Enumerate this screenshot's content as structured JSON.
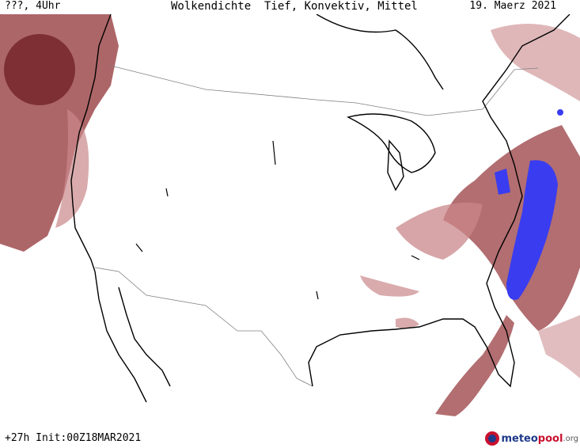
{
  "header": {
    "left": "???, 4Uhr",
    "title": "Wolkendichte  Tief, Konvektiv, Mittel",
    "date": "19. Maerz 2021"
  },
  "footer": {
    "run": "+27h Init:00Z18MAR2021"
  },
  "logo": {
    "part1": "meteo",
    "part2": "pool",
    "part3": ".org"
  },
  "colors": {
    "cloud_dark": "#8c3a3a",
    "cloud_light": "#c9878a",
    "convective": "#3a3cf0",
    "coast": "#000000",
    "border": "#808080"
  }
}
